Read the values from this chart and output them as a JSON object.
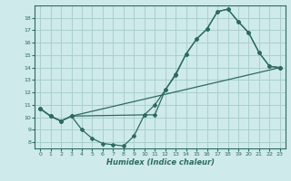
{
  "xlabel": "Humidex (Indice chaleur)",
  "ylabel": "",
  "bg_color": "#ceeaea",
  "grid_color": "#aacfcf",
  "line_color": "#2d6b5e",
  "xlim": [
    -0.5,
    23.5
  ],
  "ylim": [
    7.5,
    19.0
  ],
  "xticks": [
    0,
    1,
    2,
    3,
    4,
    5,
    6,
    7,
    8,
    9,
    10,
    11,
    12,
    13,
    14,
    15,
    16,
    17,
    18,
    19,
    20,
    21,
    22,
    23
  ],
  "yticks": [
    8,
    9,
    10,
    11,
    12,
    13,
    14,
    15,
    16,
    17,
    18
  ],
  "line1_x": [
    0,
    1,
    2,
    3,
    4,
    5,
    6,
    7,
    8,
    9,
    10,
    11,
    12,
    13,
    14,
    15,
    16,
    17,
    18,
    19,
    20,
    21,
    22,
    23
  ],
  "line1_y": [
    10.7,
    10.1,
    9.7,
    10.1,
    9.0,
    8.3,
    7.9,
    7.8,
    7.7,
    8.5,
    10.2,
    10.2,
    12.2,
    13.5,
    15.1,
    16.3,
    17.1,
    18.5,
    18.7,
    17.7,
    16.8,
    15.2,
    14.1,
    14.0
  ],
  "line2_x": [
    0,
    1,
    2,
    3,
    10,
    11,
    12,
    13,
    14,
    15,
    16,
    17,
    18,
    19,
    20,
    21,
    22,
    23
  ],
  "line2_y": [
    10.7,
    10.1,
    9.7,
    10.1,
    10.2,
    11.0,
    12.2,
    13.4,
    15.1,
    16.3,
    17.1,
    18.5,
    18.7,
    17.7,
    16.8,
    15.2,
    14.1,
    14.0
  ],
  "line3_x": [
    0,
    1,
    2,
    3,
    23
  ],
  "line3_y": [
    10.7,
    10.1,
    9.7,
    10.1,
    14.0
  ]
}
